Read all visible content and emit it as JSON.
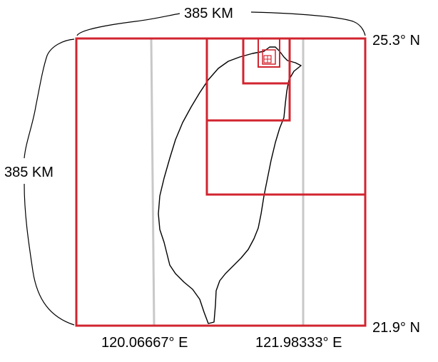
{
  "labels": {
    "top_distance": "385 KM",
    "left_distance": "385 KM",
    "north_latitude": "25.3° N",
    "south_latitude": "21.9° N",
    "west_longitude": "120.06667° E",
    "east_longitude": "121.98333° E"
  },
  "colors": {
    "grid_box": "#d1242f",
    "meridian": "#c8c8c8",
    "outline": "#000000",
    "background": "#ffffff"
  },
  "icons": {
    "island": "taiwan-island-outline"
  }
}
